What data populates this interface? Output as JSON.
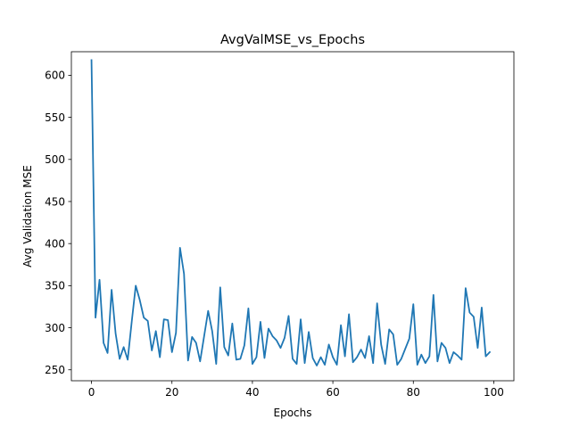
{
  "chart_data": {
    "type": "line",
    "title": "AvgValMSE_vs_Epochs",
    "xlabel": "Epochs",
    "ylabel": "Avg Validation MSE",
    "xlim": [
      -5,
      105
    ],
    "ylim": [
      237,
      628
    ],
    "xticks": [
      0,
      20,
      40,
      60,
      80,
      100
    ],
    "yticks": [
      250,
      300,
      350,
      400,
      450,
      500,
      550,
      600
    ],
    "grid": false,
    "legend": "none",
    "series": [
      {
        "color": "#1f77b4",
        "x": [
          0,
          1,
          2,
          3,
          4,
          5,
          6,
          7,
          8,
          9,
          10,
          11,
          12,
          13,
          14,
          15,
          16,
          17,
          18,
          19,
          20,
          21,
          22,
          23,
          24,
          25,
          26,
          27,
          28,
          29,
          30,
          31,
          32,
          33,
          34,
          35,
          36,
          37,
          38,
          39,
          40,
          41,
          42,
          43,
          44,
          45,
          46,
          47,
          48,
          49,
          50,
          51,
          52,
          53,
          54,
          55,
          56,
          57,
          58,
          59,
          60,
          61,
          62,
          63,
          64,
          65,
          66,
          67,
          68,
          69,
          70,
          71,
          72,
          73,
          74,
          75,
          76,
          77,
          78,
          79,
          80,
          81,
          82,
          83,
          84,
          85,
          86,
          87,
          88,
          89,
          90,
          91,
          92,
          93,
          94,
          95,
          96,
          97,
          98,
          99
        ],
        "values": [
          618,
          312,
          357,
          282,
          270,
          345,
          293,
          263,
          277,
          262,
          307,
          350,
          333,
          312,
          308,
          273,
          296,
          265,
          310,
          309,
          271,
          294,
          395,
          364,
          261,
          289,
          282,
          260,
          290,
          320,
          296,
          257,
          348,
          277,
          267,
          305,
          262,
          263,
          279,
          323,
          257,
          265,
          307,
          264,
          299,
          290,
          285,
          276,
          288,
          314,
          263,
          257,
          310,
          258,
          295,
          264,
          255,
          265,
          256,
          280,
          265,
          256,
          303,
          266,
          316,
          259,
          265,
          274,
          264,
          290,
          258,
          329,
          280,
          257,
          298,
          292,
          256,
          263,
          275,
          287,
          328,
          256,
          268,
          258,
          266,
          339,
          260,
          282,
          276,
          258,
          271,
          267,
          262,
          347,
          318,
          313,
          276,
          324,
          266,
          271
        ]
      }
    ]
  }
}
